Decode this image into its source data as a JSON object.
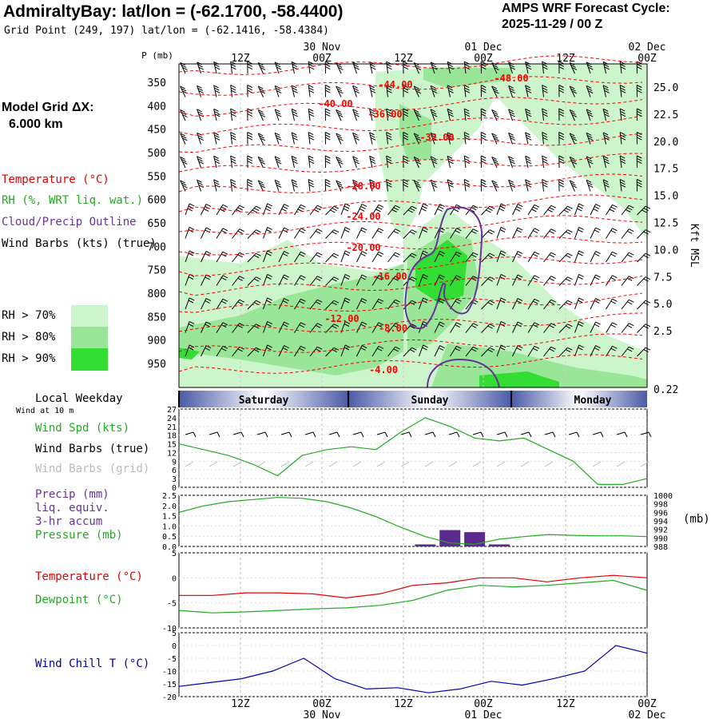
{
  "header": {
    "title": "AdmiraltyBay:  lat/lon = (-62.1700, -58.4400)",
    "grid_point": "Grid Point (249, 197) lat/lon = (-62.1416, -58.4384)",
    "cycle_label": "AMPS WRF Forecast Cycle:",
    "cycle_value": "2025-11-29 / 00  Z"
  },
  "model_grid": {
    "label": "Model Grid ΔX:",
    "value": "6.000 km"
  },
  "legend_main": {
    "temperature": "Temperature (°C)",
    "rh": "RH (%, WRT liq. wat.)",
    "cloud": "Cloud/Precip Outline",
    "wind": "Wind Barbs (kts) (true)",
    "rh70": "RH > 70%",
    "rh80": "RH > 80%",
    "rh90": "RH > 90%"
  },
  "colors": {
    "temp": "#ff0000",
    "rh_label": "#22bb22",
    "cloud": "#663399",
    "rh70": "#ccf5cc",
    "rh80": "#99e699",
    "rh90": "#33dd33",
    "wind_chill": "#0000aa",
    "precip": "#5c2a8c",
    "dewpoint": "#22bb22"
  },
  "time_axis": {
    "ticks_top": [
      "12Z",
      "00Z",
      "12Z",
      "00Z",
      "12Z",
      "00Z"
    ],
    "date_labels": [
      "30 Nov",
      "01 Dec",
      "02 Dec"
    ],
    "p_label": "P (mb)"
  },
  "days": {
    "local_weekday": "Local Weekday",
    "names": [
      "Saturday",
      "Sunday",
      "Monday"
    ]
  },
  "right_axis": {
    "label": "Kft MSL"
  },
  "panels": {
    "wind": {
      "subtitle": "Wind at 10 m",
      "spd": "Wind Spd (kts)",
      "barbs_true": "Wind Barbs (true)",
      "barbs_grid": "Wind Barbs (grid)"
    },
    "precip": {
      "l1": "Precip (mm)",
      "l2": "liq. equiv.",
      "l3": "3-hr accum",
      "pressure": "Pressure (mb)",
      "unit_right": "(mb)"
    },
    "temp": {
      "temperature": "Temperature (°C)",
      "dewpoint": "Dewpoint (°C)"
    },
    "chill": {
      "label": "Wind Chill T (°C)"
    }
  },
  "chart_data": [
    {
      "type": "heatmap",
      "title": "AdmiraltyBay:  lat/lon = (-62.1700, -58.4400)",
      "xlabel": "",
      "ylabel": "P (mb)",
      "y_ticks": [
        350,
        400,
        450,
        500,
        550,
        600,
        650,
        700,
        750,
        800,
        850,
        900,
        950
      ],
      "y_right_ticks": [
        "25.0",
        "22.5",
        "20.0",
        "17.5",
        "15.0",
        "12.5",
        "10.0",
        "7.5",
        "5.0",
        "2.5",
        "0.22"
      ],
      "y_right_label": "Kft MSL",
      "temperature_labels": [
        "-48.00",
        "-44.00",
        "-40.00",
        "-36.00",
        "-32.00",
        "-28.00",
        "-24.00",
        "-20.00",
        "-16.00",
        "-12.00",
        "-8.00",
        "-4.00"
      ],
      "x_ticks": [
        "12Z",
        "00Z",
        "12Z",
        "00Z",
        "12Z",
        "00Z"
      ]
    },
    {
      "type": "line",
      "series": [
        {
          "name": "Wind Spd (kts)",
          "values": [
            15,
            13,
            11,
            8,
            4,
            11,
            13,
            14,
            13,
            19,
            24,
            21,
            17,
            16,
            17,
            13,
            9,
            1,
            1,
            3
          ]
        }
      ],
      "y_ticks": [
        0,
        3,
        6,
        9,
        12,
        15,
        18,
        21,
        24,
        27
      ],
      "ylim": [
        0,
        27
      ]
    },
    {
      "type": "bar",
      "series": [
        {
          "name": "Precip (mm)",
          "values": [
            0,
            0,
            0,
            0,
            0,
            0,
            0,
            0,
            0,
            0,
            0.1,
            0.8,
            0.7,
            0.1,
            0,
            0,
            0,
            0,
            0,
            0
          ]
        },
        {
          "name": "Pressure (mb)",
          "values": [
            996.0,
            997.5,
            998.5,
            999.0,
            999.5,
            999.3,
            998.5,
            997.0,
            995.0,
            992.5,
            990.3,
            988.8,
            988.5,
            989.7,
            990.3,
            990.8,
            990.6,
            990.5,
            990.5,
            990.3
          ]
        }
      ],
      "y_left_ticks": [
        "0.0",
        "0.5",
        "1.0",
        "1.5",
        "2.0",
        "2.5"
      ],
      "y_right_ticks": [
        988,
        990,
        992,
        994,
        996,
        998,
        1000
      ],
      "ylim": [
        0,
        2.5
      ],
      "ylim_right": [
        988,
        1000
      ]
    },
    {
      "type": "line",
      "series": [
        {
          "name": "Temperature (°C)",
          "values": [
            -3.5,
            -3.5,
            -3.0,
            -3.0,
            -3.2,
            -4.0,
            -3.2,
            -1.5,
            -1.0,
            0.0,
            0.0,
            -0.8,
            0.0,
            0.5,
            0.0
          ]
        },
        {
          "name": "Dewpoint (°C)",
          "values": [
            -6.5,
            -7.0,
            -6.8,
            -6.5,
            -6.2,
            -6.0,
            -5.5,
            -4.5,
            -2.5,
            -1.5,
            -1.8,
            -1.5,
            -1.0,
            -0.5,
            -2.5
          ]
        }
      ],
      "y_ticks": [
        -10,
        -5,
        0,
        5
      ],
      "ylim": [
        -10,
        5
      ]
    },
    {
      "type": "line",
      "series": [
        {
          "name": "Wind Chill T (°C)",
          "values": [
            -16,
            -14.5,
            -13,
            -10,
            -5,
            -13,
            -17,
            -16.5,
            -18.5,
            -17,
            -14,
            -15.5,
            -13,
            -10,
            0,
            -3
          ]
        }
      ],
      "y_ticks": [
        -20,
        -15,
        -10,
        -5,
        0,
        5
      ],
      "ylim": [
        -20,
        5
      ]
    }
  ]
}
